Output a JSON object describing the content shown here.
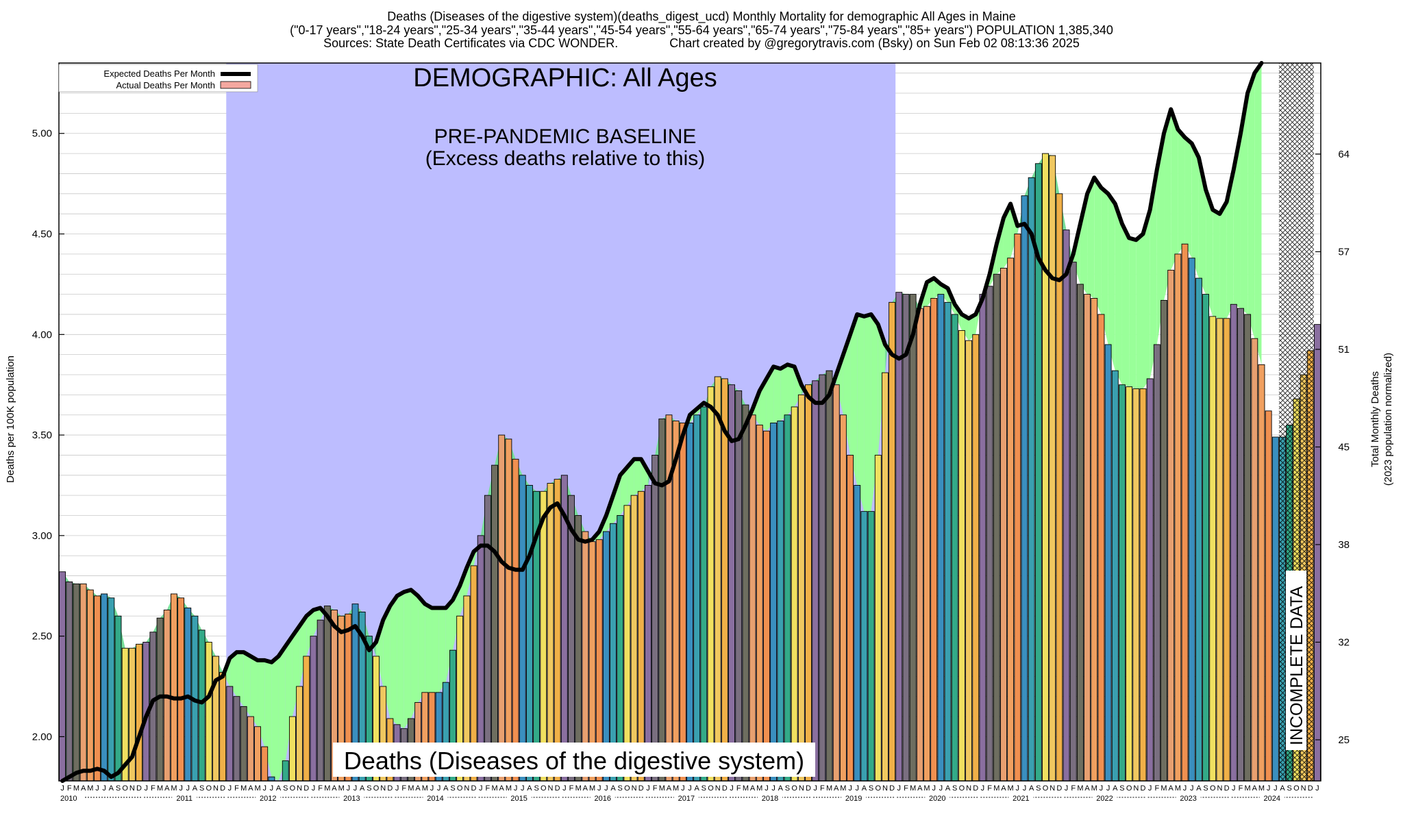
{
  "header": {
    "line1": "Deaths (Diseases of the digestive system)(deaths_digest_ucd) Monthly Mortality for demographic All Ages in Maine",
    "line2": "(\"0-17 years\",\"18-24 years\",\"25-34 years\",\"35-44 years\",\"45-54 years\",\"55-64 years\",\"65-74 years\",\"75-84 years\",\"85+ years\") POPULATION 1,385,340",
    "line3": "Sources: State Death Certificates via CDC WONDER.               Chart created by @gregorytravis.com (Bsky) on Sun Feb 02 08:13:36 2025"
  },
  "colors": {
    "baseline_band": "#bdbdff",
    "excess_fill": "#99ff99",
    "deficit_fill": "#77dd99",
    "expected_line": "#000000",
    "month_colors": [
      "#8a6fa0",
      "#7a6f80",
      "#6e6e60",
      "#e8a070",
      "#f0a060",
      "#f09050",
      "#3a8fbf",
      "#3aa0b0",
      "#33aa88",
      "#f0e060",
      "#f0c860",
      "#f0b048"
    ]
  },
  "chart_data": {
    "type": "bar",
    "title": "DEMOGRAPHIC: All Ages",
    "baseline_title": "PRE-PANDEMIC BASELINE",
    "baseline_subtitle": "(Excess deaths relative to this)",
    "cause_label": "Deaths (Diseases of the digestive system)",
    "incomplete_label": "INCOMPLETE DATA",
    "ylabel": "Deaths per 100K population",
    "y2label_line1": "Total Monthly Deaths",
    "y2label_line2": "(2023 population normalized)",
    "ylim": [
      1.78,
      5.35
    ],
    "yticks": [
      "2.00",
      "2.50",
      "3.00",
      "3.50",
      "4.00",
      "4.50",
      "5.00"
    ],
    "y2ticks": [
      "25",
      "32",
      "38",
      "45",
      "51",
      "57",
      "64"
    ],
    "years": [
      "2010",
      "2011",
      "2012",
      "2013",
      "2014",
      "2015",
      "2016",
      "2017",
      "2018",
      "2019",
      "2020",
      "2021",
      "2022",
      "2023",
      "2024"
    ],
    "month_letters": [
      "J",
      "F",
      "M",
      "A",
      "M",
      "J",
      "J",
      "A",
      "S",
      "O",
      "N",
      "D"
    ],
    "baseline_period": [
      "2012-01",
      "2019-12"
    ],
    "incomplete_period": [
      "2024-08",
      "2024-12"
    ],
    "legend": [
      "Expected Deaths Per Month",
      "Actual Deaths Per Month"
    ],
    "series": [
      {
        "name": "Actual Deaths Per Month",
        "values": [
          2.82,
          2.77,
          2.76,
          2.76,
          2.73,
          2.7,
          2.71,
          2.69,
          2.6,
          2.44,
          2.44,
          2.46,
          2.47,
          2.52,
          2.59,
          2.63,
          2.71,
          2.69,
          2.64,
          2.6,
          2.53,
          2.47,
          2.4,
          2.32,
          2.25,
          2.2,
          2.15,
          2.1,
          2.05,
          1.95,
          1.8,
          1.78,
          1.88,
          2.1,
          2.25,
          2.4,
          2.5,
          2.58,
          2.65,
          2.63,
          2.6,
          2.61,
          2.66,
          2.62,
          2.5,
          2.4,
          2.25,
          2.09,
          2.06,
          2.04,
          2.09,
          2.17,
          2.22,
          2.22,
          2.22,
          2.27,
          2.43,
          2.6,
          2.7,
          2.85,
          3.0,
          3.2,
          3.35,
          3.5,
          3.48,
          3.38,
          3.3,
          3.25,
          3.22,
          3.22,
          3.26,
          3.28,
          3.3,
          3.2,
          3.1,
          3.02,
          2.97,
          2.98,
          3.02,
          3.06,
          3.1,
          3.15,
          3.2,
          3.22,
          3.25,
          3.4,
          3.58,
          3.6,
          3.57,
          3.56,
          3.56,
          3.6,
          3.64,
          3.74,
          3.79,
          3.78,
          3.75,
          3.72,
          3.65,
          3.6,
          3.55,
          3.52,
          3.56,
          3.57,
          3.6,
          3.64,
          3.7,
          3.75,
          3.77,
          3.8,
          3.82,
          3.75,
          3.6,
          3.4,
          3.25,
          3.12,
          3.12,
          3.4,
          3.81,
          4.16,
          4.21,
          4.2,
          4.2,
          4.13,
          4.14,
          4.18,
          4.2,
          4.16,
          4.1,
          4.02,
          3.97,
          4.0,
          4.2,
          4.24,
          4.3,
          4.33,
          4.38,
          4.5,
          4.69,
          4.78,
          4.85,
          4.9,
          4.89,
          4.7,
          4.52,
          4.36,
          4.25,
          4.2,
          4.18,
          4.1,
          3.95,
          3.82,
          3.75,
          3.74,
          3.73,
          3.73,
          3.78,
          3.95,
          4.17,
          4.32,
          4.4,
          4.45,
          4.38,
          4.28,
          4.2,
          4.09,
          4.08,
          4.08,
          4.15,
          4.13,
          4.1,
          3.98,
          3.85,
          3.62,
          3.49,
          3.49,
          3.55,
          3.68,
          3.8,
          3.92,
          4.05
        ]
      },
      {
        "name": "Expected Deaths Per Month",
        "values": [
          1.78,
          1.8,
          1.82,
          1.83,
          1.83,
          1.84,
          1.83,
          1.8,
          1.82,
          1.86,
          1.9,
          2.0,
          2.1,
          2.18,
          2.2,
          2.2,
          2.19,
          2.19,
          2.2,
          2.18,
          2.17,
          2.2,
          2.28,
          2.3,
          2.39,
          2.42,
          2.42,
          2.4,
          2.38,
          2.38,
          2.37,
          2.4,
          2.45,
          2.5,
          2.55,
          2.6,
          2.63,
          2.64,
          2.6,
          2.55,
          2.52,
          2.53,
          2.55,
          2.5,
          2.43,
          2.47,
          2.58,
          2.65,
          2.7,
          2.72,
          2.73,
          2.7,
          2.66,
          2.64,
          2.64,
          2.64,
          2.68,
          2.75,
          2.84,
          2.92,
          2.95,
          2.95,
          2.92,
          2.87,
          2.84,
          2.83,
          2.83,
          2.9,
          3.0,
          3.09,
          3.14,
          3.16,
          3.1,
          3.03,
          2.98,
          2.97,
          2.98,
          3.02,
          3.1,
          3.2,
          3.3,
          3.34,
          3.38,
          3.38,
          3.32,
          3.26,
          3.25,
          3.27,
          3.38,
          3.5,
          3.6,
          3.63,
          3.66,
          3.64,
          3.6,
          3.52,
          3.47,
          3.48,
          3.55,
          3.63,
          3.72,
          3.78,
          3.84,
          3.83,
          3.85,
          3.84,
          3.75,
          3.69,
          3.66,
          3.66,
          3.7,
          3.8,
          3.9,
          4.0,
          4.1,
          4.09,
          4.1,
          4.05,
          3.95,
          3.9,
          3.88,
          3.9,
          4.0,
          4.15,
          4.26,
          4.28,
          4.25,
          4.23,
          4.15,
          4.1,
          4.08,
          4.1,
          4.18,
          4.3,
          4.45,
          4.58,
          4.65,
          4.54,
          4.55,
          4.5,
          4.38,
          4.32,
          4.28,
          4.27,
          4.3,
          4.4,
          4.55,
          4.7,
          4.78,
          4.73,
          4.7,
          4.65,
          4.55,
          4.48,
          4.47,
          4.5,
          4.62,
          4.82,
          5.0,
          5.12,
          5.02,
          4.98,
          4.95,
          4.88,
          4.72,
          4.62,
          4.6,
          4.66,
          4.82,
          5.0,
          5.2,
          5.3,
          5.35
        ]
      }
    ]
  }
}
